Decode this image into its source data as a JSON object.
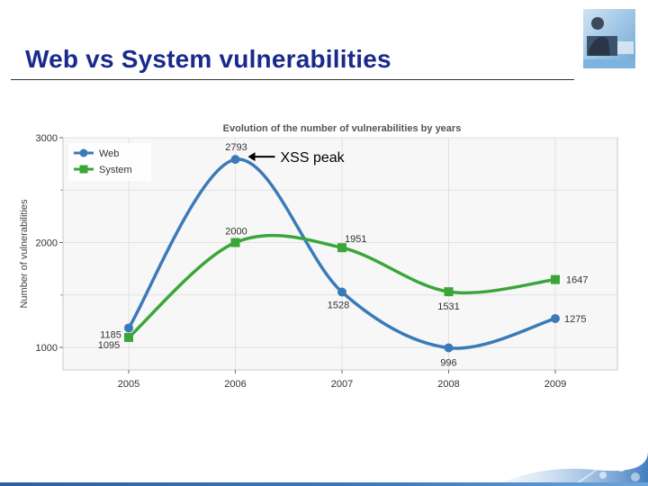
{
  "slide": {
    "title": "Web vs System vulnerabilities"
  },
  "colors": {
    "title": "#1a2a8c",
    "web": "#3a7ab8",
    "system": "#3aa63a"
  },
  "chart_data": {
    "type": "line",
    "title": "Evolution of the number of vulnerabilities by years",
    "xlabel": "",
    "ylabel": "Number of vulnerabilities",
    "categories": [
      "2005",
      "2006",
      "2007",
      "2008",
      "2009"
    ],
    "series": [
      {
        "name": "Web",
        "marker": "circle",
        "color": "#3a7ab8",
        "values": [
          1185,
          2793,
          1528,
          996,
          1275
        ],
        "labels": [
          "1185",
          "2793",
          "1528",
          "996",
          "1275"
        ]
      },
      {
        "name": "System",
        "marker": "square",
        "color": "#3aa63a",
        "values": [
          1095,
          2000,
          1951,
          1531,
          1647
        ],
        "labels": [
          "1095",
          "2000",
          "1951",
          "1531",
          "1647"
        ]
      }
    ],
    "ylim": [
      1000,
      3000
    ],
    "yticks": [
      1000,
      2000,
      3000
    ],
    "grid": true,
    "legend": "top-left",
    "smooth": true,
    "annotations": [
      {
        "text": "XSS peak",
        "target_series": "Web",
        "target_category": "2006"
      }
    ]
  }
}
